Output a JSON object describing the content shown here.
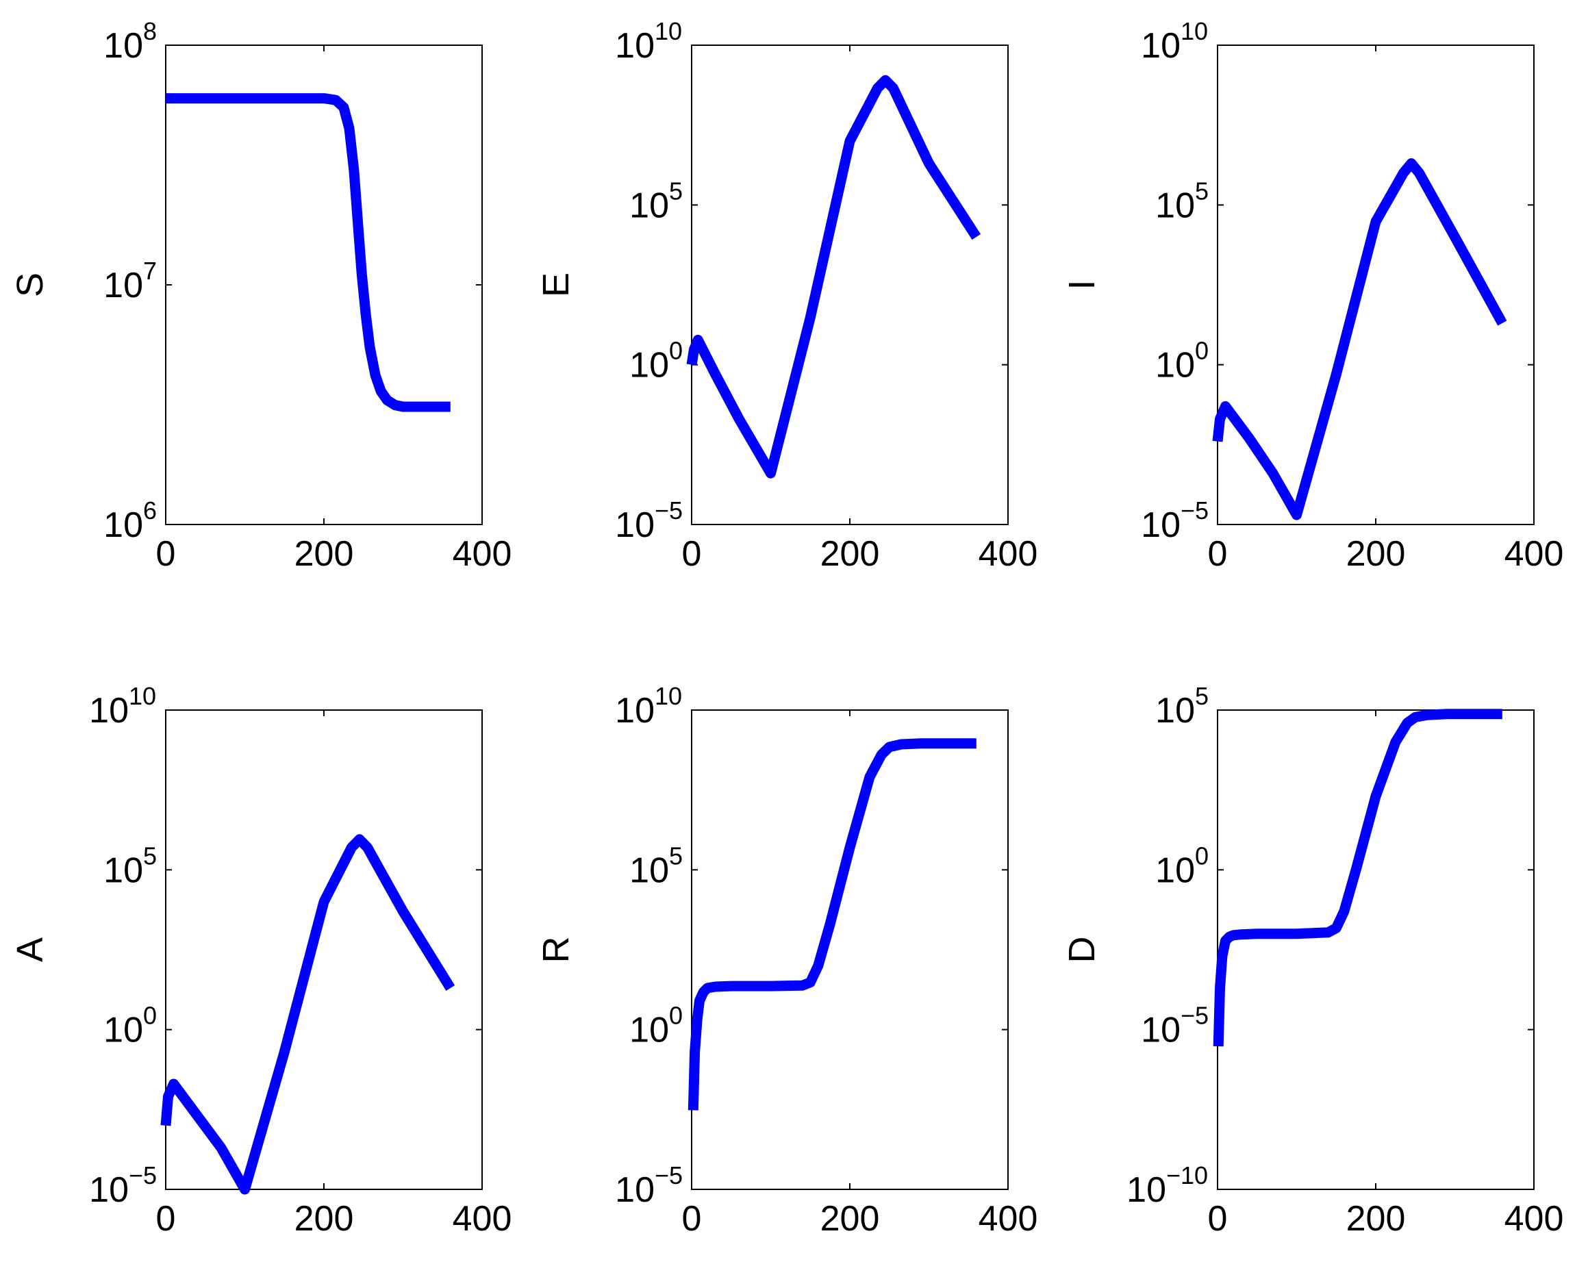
{
  "chart_data": [
    {
      "type": "line",
      "ylabel": "S",
      "yscale": "log",
      "xlim": [
        0,
        400
      ],
      "ylim": [
        1000000,
        100000000
      ],
      "x_ticks": [
        "0",
        "200",
        "400"
      ],
      "y_ticks": [
        {
          "base": "10",
          "exp": "6",
          "value": 1000000
        },
        {
          "base": "10",
          "exp": "7",
          "value": 10000000
        },
        {
          "base": "10",
          "exp": "8",
          "value": 100000000
        }
      ],
      "color": "#0000ff",
      "series": [
        {
          "x": [
            0,
            100,
            200,
            215,
            225,
            232,
            238,
            243,
            248,
            253,
            258,
            265,
            272,
            280,
            290,
            300,
            320,
            360
          ],
          "y": [
            60000000,
            60000000,
            60000000,
            59000000,
            55000000,
            45000000,
            30000000,
            18000000,
            11000000,
            7500000,
            5500000,
            4200000,
            3600000,
            3300000,
            3150000,
            3100000,
            3100000,
            3100000
          ]
        }
      ]
    },
    {
      "type": "line",
      "ylabel": "E",
      "yscale": "log",
      "xlim": [
        0,
        400
      ],
      "ylim": [
        1e-05,
        10000000000
      ],
      "x_ticks": [
        "0",
        "200",
        "400"
      ],
      "y_ticks": [
        {
          "base": "10",
          "exp": "−5",
          "value": 1e-05
        },
        {
          "base": "10",
          "exp": "0",
          "value": 1
        },
        {
          "base": "10",
          "exp": "5",
          "value": 100000
        },
        {
          "base": "10",
          "exp": "10",
          "value": 10000000000
        }
      ],
      "color": "#0000ff",
      "series": [
        {
          "x": [
            0,
            3,
            8,
            30,
            60,
            100,
            150,
            200,
            235,
            245,
            255,
            300,
            360
          ],
          "y": [
            1,
            3,
            6,
            0.5,
            0.02,
            0.0004,
            30,
            10000000,
            450000000,
            800000000,
            450000000,
            2000000,
            10000
          ]
        }
      ]
    },
    {
      "type": "line",
      "ylabel": "I",
      "yscale": "log",
      "xlim": [
        0,
        400
      ],
      "ylim": [
        1e-05,
        10000000000
      ],
      "x_ticks": [
        "0",
        "200",
        "400"
      ],
      "y_ticks": [
        {
          "base": "10",
          "exp": "−5",
          "value": 1e-05
        },
        {
          "base": "10",
          "exp": "0",
          "value": 1
        },
        {
          "base": "10",
          "exp": "5",
          "value": 100000
        },
        {
          "base": "10",
          "exp": "10",
          "value": 10000000000
        }
      ],
      "color": "#0000ff",
      "series": [
        {
          "x": [
            0,
            3,
            10,
            40,
            70,
            100,
            150,
            200,
            235,
            245,
            255,
            300,
            360
          ],
          "y": [
            0.004,
            0.02,
            0.05,
            0.005,
            0.0004,
            2e-05,
            0.5,
            30000,
            1000000,
            2000000,
            1000000,
            10000,
            20
          ]
        }
      ]
    },
    {
      "type": "line",
      "ylabel": "A",
      "yscale": "log",
      "xlim": [
        0,
        400
      ],
      "ylim": [
        1e-05,
        10000000000
      ],
      "x_ticks": [
        "0",
        "200",
        "400"
      ],
      "y_ticks": [
        {
          "base": "10",
          "exp": "−5",
          "value": 1e-05
        },
        {
          "base": "10",
          "exp": "0",
          "value": 1
        },
        {
          "base": "10",
          "exp": "5",
          "value": 100000
        },
        {
          "base": "10",
          "exp": "10",
          "value": 10000000000
        }
      ],
      "color": "#0000ff",
      "series": [
        {
          "x": [
            0,
            3,
            10,
            40,
            70,
            100,
            150,
            200,
            235,
            245,
            255,
            300,
            360
          ],
          "y": [
            0.001,
            0.008,
            0.02,
            0.002,
            0.0002,
            1e-05,
            0.2,
            10000,
            500000,
            900000,
            500000,
            5000,
            20
          ]
        }
      ]
    },
    {
      "type": "line",
      "ylabel": "R",
      "yscale": "log",
      "xlim": [
        0,
        400
      ],
      "ylim": [
        1e-05,
        10000000000
      ],
      "x_ticks": [
        "0",
        "200",
        "400"
      ],
      "y_ticks": [
        {
          "base": "10",
          "exp": "−5",
          "value": 1e-05
        },
        {
          "base": "10",
          "exp": "0",
          "value": 1
        },
        {
          "base": "10",
          "exp": "5",
          "value": 100000
        },
        {
          "base": "10",
          "exp": "10",
          "value": 10000000000
        }
      ],
      "color": "#0000ff",
      "series": [
        {
          "x": [
            2,
            4,
            7,
            10,
            15,
            20,
            30,
            50,
            100,
            140,
            150,
            160,
            175,
            200,
            225,
            240,
            250,
            265,
            290,
            360
          ],
          "y": [
            0.003,
            0.2,
            2,
            8,
            15,
            20,
            22,
            23,
            23,
            24,
            30,
            100,
            2000,
            500000,
            80000000,
            400000000,
            700000000,
            850000000,
            900000000,
            900000000
          ]
        }
      ]
    },
    {
      "type": "line",
      "ylabel": "D",
      "yscale": "log",
      "xlim": [
        0,
        400
      ],
      "ylim": [
        1e-10,
        100000
      ],
      "x_ticks": [
        "0",
        "200",
        "400"
      ],
      "y_ticks": [
        {
          "base": "10",
          "exp": "−10",
          "value": 1e-10
        },
        {
          "base": "10",
          "exp": "−5",
          "value": 1e-05
        },
        {
          "base": "10",
          "exp": "0",
          "value": 1
        },
        {
          "base": "10",
          "exp": "5",
          "value": 100000
        }
      ],
      "color": "#0000ff",
      "series": [
        {
          "x": [
            1,
            3,
            6,
            10,
            15,
            20,
            30,
            50,
            100,
            140,
            150,
            160,
            175,
            200,
            225,
            240,
            250,
            265,
            290,
            360
          ],
          "y": [
            3e-06,
            0.0002,
            0.002,
            0.006,
            0.008,
            0.009,
            0.0095,
            0.01,
            0.01,
            0.011,
            0.015,
            0.05,
            1,
            200,
            10000,
            40000,
            60000,
            70000,
            75000,
            75000
          ]
        }
      ]
    }
  ]
}
